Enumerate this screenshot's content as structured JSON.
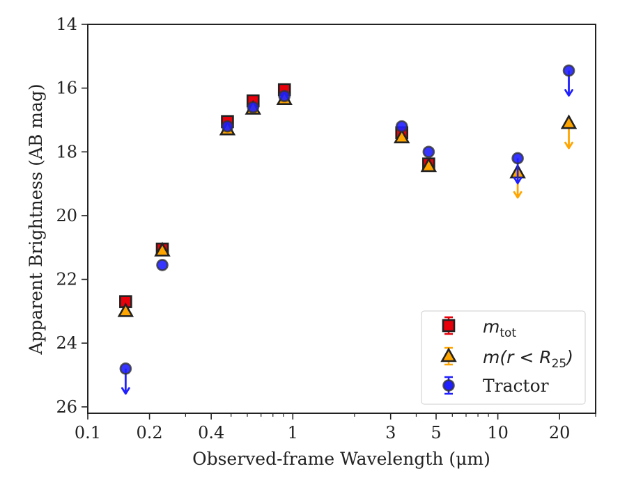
{
  "chart_data": {
    "type": "scatter",
    "title": "",
    "xlabel": "Observed-frame Wavelength (",
    "xlabel_unit": "μm",
    "xlabel_close": ")",
    "ylabel": "Apparent Brightness (AB mag)",
    "xscale": "log",
    "xlim": [
      0.1,
      30
    ],
    "ylim": [
      26.2,
      14
    ],
    "y_inverted": true,
    "grid": false,
    "legend_position": "bottom-right",
    "x_ticks": [
      {
        "value": 0.1,
        "label": "0.1"
      },
      {
        "value": 0.2,
        "label": "0.2"
      },
      {
        "value": 0.4,
        "label": "0.4"
      },
      {
        "value": 1,
        "label": "1"
      },
      {
        "value": 3,
        "label": "3"
      },
      {
        "value": 5,
        "label": "5"
      },
      {
        "value": 10,
        "label": "10"
      },
      {
        "value": 20,
        "label": "20"
      }
    ],
    "y_ticks": [
      {
        "value": 14,
        "label": "14"
      },
      {
        "value": 16,
        "label": "16"
      },
      {
        "value": 18,
        "label": "18"
      },
      {
        "value": 20,
        "label": "20"
      },
      {
        "value": 22,
        "label": "22"
      },
      {
        "value": 24,
        "label": "24"
      },
      {
        "value": 26,
        "label": "26"
      }
    ],
    "series": [
      {
        "name": "m",
        "name_sub": "tot",
        "marker": "square",
        "color": "#e8000b",
        "edge": "#222222",
        "points": [
          {
            "x": 0.153,
            "y": 22.7
          },
          {
            "x": 0.231,
            "y": 21.05
          },
          {
            "x": 0.48,
            "y": 17.05
          },
          {
            "x": 0.64,
            "y": 16.4
          },
          {
            "x": 0.91,
            "y": 16.05
          },
          {
            "x": 3.4,
            "y": 17.4
          },
          {
            "x": 4.6,
            "y": 18.38
          }
        ]
      },
      {
        "name": "m(r < R",
        "name_sub": "25",
        "name_close": ")",
        "marker": "triangle",
        "color": "#ffa500",
        "edge": "#222222",
        "points": [
          {
            "x": 0.153,
            "y": 23.0
          },
          {
            "x": 0.231,
            "y": 21.1
          },
          {
            "x": 0.48,
            "y": 17.3
          },
          {
            "x": 0.64,
            "y": 16.65
          },
          {
            "x": 0.91,
            "y": 16.35
          },
          {
            "x": 3.4,
            "y": 17.55
          },
          {
            "x": 4.6,
            "y": 18.45
          },
          {
            "x": 12.5,
            "y": 18.65,
            "upper_limit": true
          },
          {
            "x": 22.2,
            "y": 17.1,
            "upper_limit": true
          }
        ]
      },
      {
        "name": "Tractor",
        "marker": "circle",
        "color": "#1f1fff",
        "edge": "#333333",
        "points": [
          {
            "x": 0.153,
            "y": 24.8,
            "upper_limit": true
          },
          {
            "x": 0.231,
            "y": 21.55
          },
          {
            "x": 0.48,
            "y": 17.2
          },
          {
            "x": 0.64,
            "y": 16.6
          },
          {
            "x": 0.91,
            "y": 16.25
          },
          {
            "x": 3.4,
            "y": 17.2
          },
          {
            "x": 4.6,
            "y": 18.0
          },
          {
            "x": 12.5,
            "y": 18.2,
            "upper_limit": true
          },
          {
            "x": 22.2,
            "y": 15.45,
            "upper_limit": true
          }
        ]
      }
    ]
  }
}
